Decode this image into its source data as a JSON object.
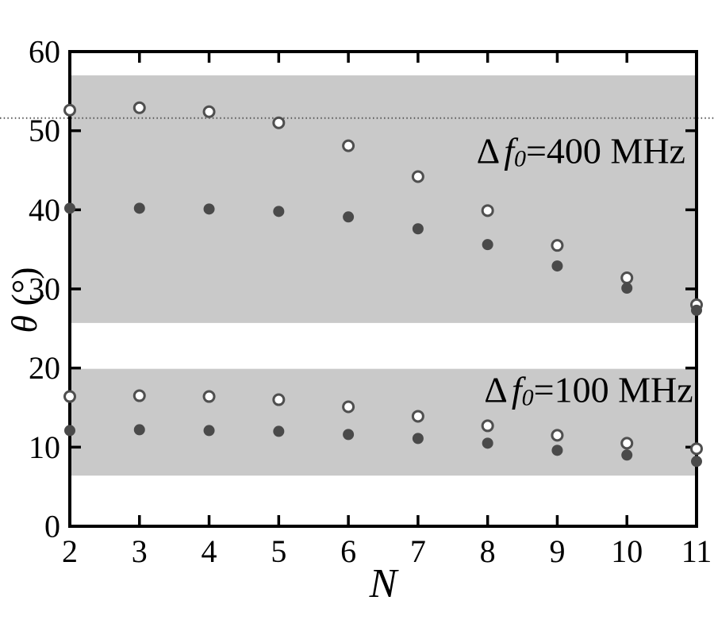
{
  "chart_data": {
    "type": "scatter",
    "title": "",
    "xlabel": "N",
    "ylabel_symbol": "θ",
    "ylabel_units": " (°)",
    "xlim": [
      2,
      11
    ],
    "ylim": [
      0,
      60
    ],
    "x_ticks": [
      2,
      3,
      4,
      5,
      6,
      7,
      8,
      9,
      10,
      11
    ],
    "y_ticks": [
      0,
      10,
      20,
      30,
      40,
      50,
      60
    ],
    "grid": false,
    "legend": "none (labels annotated inside plot)",
    "x": [
      2,
      3,
      4,
      5,
      6,
      7,
      8,
      9,
      10,
      11
    ],
    "series": [
      {
        "name": "delta-f0-400MHz-open-circles",
        "marker": "open-circle",
        "values": [
          52.6,
          52.9,
          52.4,
          51.0,
          48.1,
          44.2,
          39.9,
          35.5,
          31.4,
          28.0
        ]
      },
      {
        "name": "delta-f0-400MHz-filled-circles",
        "marker": "filled-circle",
        "values": [
          40.2,
          40.2,
          40.1,
          39.8,
          39.1,
          37.6,
          35.6,
          32.9,
          30.1,
          27.3
        ]
      },
      {
        "name": "delta-f0-100MHz-open-circles",
        "marker": "open-circle",
        "values": [
          16.4,
          16.5,
          16.4,
          16.0,
          15.1,
          13.9,
          12.7,
          11.5,
          10.5,
          9.8
        ]
      },
      {
        "name": "delta-f0-100MHz-filled-circles",
        "marker": "filled-circle",
        "values": [
          12.1,
          12.2,
          12.1,
          12.0,
          11.6,
          11.1,
          10.5,
          9.6,
          9.0,
          8.2
        ]
      }
    ],
    "bands": [
      {
        "from": 25.7,
        "to": 57.0
      },
      {
        "from": 6.4,
        "to": 19.9
      }
    ],
    "reference_line": {
      "y": 51.6,
      "style": "dotted",
      "full_width": true
    },
    "annotations": [
      {
        "id": "400mhz",
        "prefix": "Δ",
        "italic": "f",
        "subscript": "0",
        "suffix": "=400 MHz",
        "anchor_x": 10.84,
        "anchor_y": 47.5,
        "align": "end"
      },
      {
        "id": "100mhz",
        "prefix": "Δ",
        "italic": "f",
        "subscript": "0",
        "suffix": "=100 MHz",
        "anchor_x": 10.95,
        "anchor_y": 17.3,
        "align": "end"
      }
    ],
    "colors": {
      "band": "#c9c9c9",
      "marker_fill": "#4a4a4a",
      "marker_stroke": "#4f4f4f",
      "axis": "#000000",
      "reference_line": "#555555",
      "background": "#ffffff"
    }
  }
}
